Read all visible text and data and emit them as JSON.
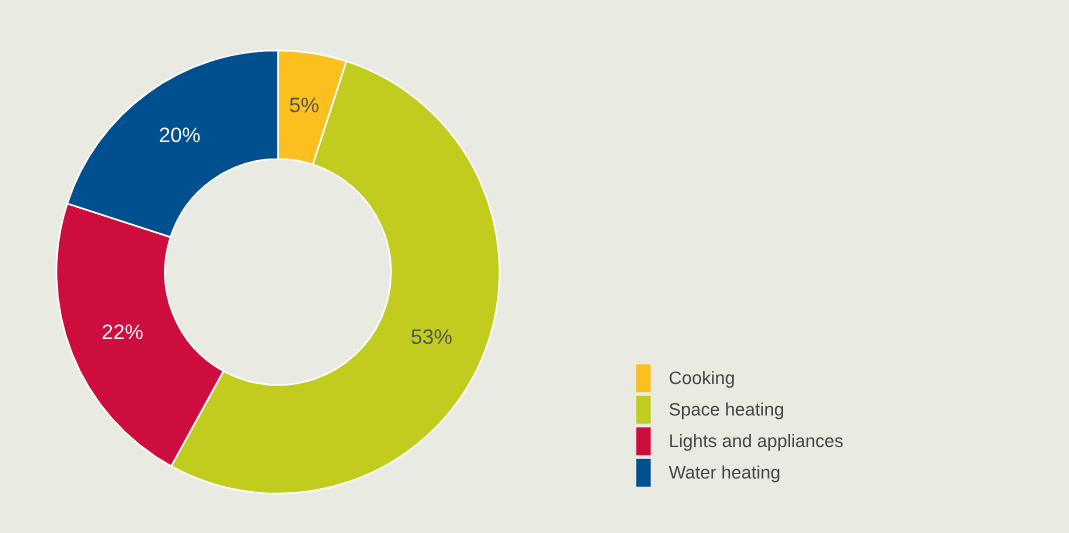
{
  "chart_data": {
    "type": "donut",
    "categories": [
      "Cooking",
      "Space heating",
      "Lights and appliances",
      "Water heating"
    ],
    "values": [
      5,
      53,
      22,
      20
    ],
    "colors": [
      "#fbbf1e",
      "#c2cc1f",
      "#cc0d3d",
      "#00508f"
    ],
    "value_labels": [
      "5%",
      "53%",
      "22%",
      "20%"
    ],
    "legend": "bottom right"
  }
}
